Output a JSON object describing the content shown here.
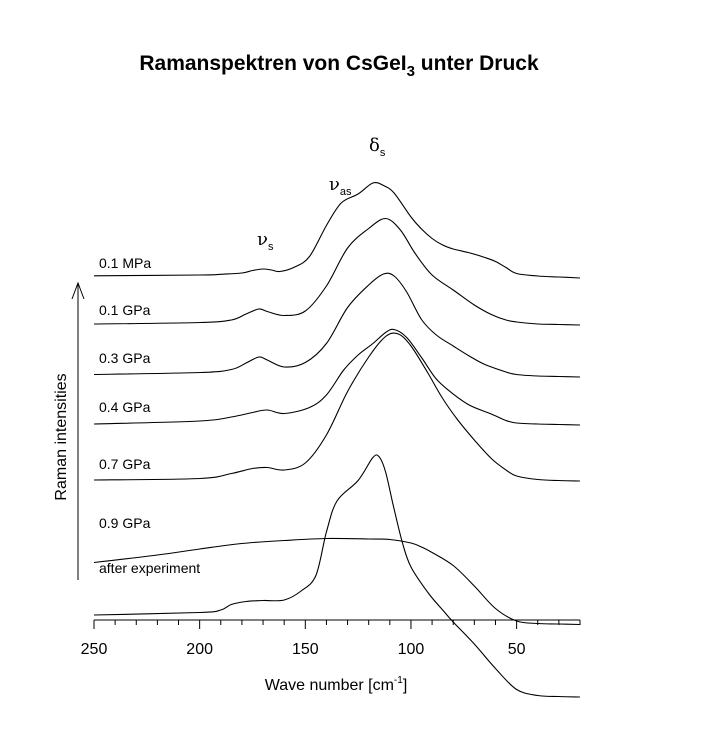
{
  "chart_data": {
    "type": "line",
    "title": {
      "main": "Ramanspektren von CsGeI",
      "sub": "3",
      "tail": " unter Druck"
    },
    "xlabel": {
      "main": "Wave number [cm",
      "sup": "-1",
      "tail": "]"
    },
    "ylabel": "Raman intensities",
    "xlim": [
      250,
      20
    ],
    "x_ticks": [
      250,
      200,
      150,
      100,
      50
    ],
    "annotations": [
      {
        "symbol": "ν",
        "sub": "s",
        "x": 170
      },
      {
        "symbol": "ν",
        "sub": "as",
        "x": 136
      },
      {
        "symbol": "δ",
        "sub": "s",
        "x": 117
      }
    ],
    "series": [
      {
        "name": "0.1 MPa",
        "x": [
          250,
          200,
          190,
          180,
          175,
          170,
          166,
          162,
          155,
          148,
          140,
          133,
          125,
          118,
          113,
          108,
          100,
          95,
          90,
          85,
          80,
          72,
          65,
          60,
          55,
          50,
          40,
          30,
          20
        ],
        "y": [
          0.45,
          0.6,
          0.75,
          1.0,
          1.5,
          1.8,
          1.6,
          1.3,
          2.2,
          4.3,
          10.5,
          15.0,
          16.8,
          19.0,
          18.5,
          17.0,
          12.2,
          9.8,
          7.9,
          6.6,
          5.8,
          5.0,
          4.1,
          3.3,
          2.1,
          0.9,
          0.4,
          0.2,
          0
        ]
      },
      {
        "name": "0.1 GPa",
        "x": [
          250,
          200,
          185,
          178,
          172,
          168,
          160,
          150,
          140,
          130,
          120,
          112,
          105,
          98,
          90,
          80,
          70,
          62,
          55,
          50,
          40,
          30,
          20
        ],
        "y": [
          0.2,
          0.5,
          1.0,
          2.2,
          3.2,
          2.7,
          1.9,
          2.8,
          7.8,
          15.4,
          19.3,
          21.3,
          19.0,
          14.3,
          10.0,
          7.0,
          4.0,
          2.1,
          1.0,
          0.6,
          0.2,
          0.1,
          0
        ]
      },
      {
        "name": "0.3 GPa",
        "x": [
          250,
          200,
          185,
          178,
          172,
          168,
          160,
          150,
          140,
          130,
          120,
          113,
          108,
          102,
          95,
          88,
          80,
          72,
          65,
          55,
          50,
          40,
          30,
          20
        ],
        "y": [
          0.5,
          0.9,
          1.5,
          2.8,
          4.0,
          3.4,
          2.0,
          2.9,
          6.7,
          13.9,
          18.4,
          20.6,
          20.2,
          17.0,
          11.5,
          8.4,
          6.2,
          4.1,
          2.5,
          1.0,
          0.5,
          0.2,
          0.1,
          0
        ]
      },
      {
        "name": "0.4 GPa",
        "x": [
          250,
          200,
          185,
          175,
          168,
          160,
          148,
          140,
          132,
          125,
          118,
          112,
          108,
          102,
          95,
          88,
          80,
          72,
          62,
          55,
          50,
          40,
          30,
          20
        ],
        "y": [
          0.2,
          0.8,
          1.6,
          2.5,
          3.0,
          2.3,
          3.5,
          6.0,
          10.9,
          14.0,
          16.3,
          18.5,
          19.1,
          17.5,
          13.5,
          9.2,
          6.2,
          3.9,
          2.2,
          0.9,
          0.4,
          0.2,
          0.1,
          0
        ]
      },
      {
        "name": "0.7 GPa",
        "x": [
          250,
          200,
          185,
          175,
          168,
          160,
          150,
          140,
          130,
          120,
          112,
          106,
          100,
          92,
          85,
          78,
          70,
          62,
          55,
          50,
          40,
          30,
          20
        ],
        "y": [
          0.2,
          0.5,
          1.5,
          2.5,
          2.7,
          2.2,
          3.6,
          9.2,
          17.9,
          24.8,
          28.9,
          29.4,
          27.0,
          21.6,
          16.5,
          12.3,
          8.2,
          4.5,
          2.2,
          1.0,
          0.3,
          0.1,
          0
        ]
      },
      {
        "name": "0.9 GPa",
        "x": [
          250,
          220,
          200,
          180,
          160,
          140,
          120,
          110,
          100,
          95,
          90,
          80,
          70,
          60,
          50,
          40,
          30,
          20
        ],
        "y": [
          1.9,
          3.4,
          4.6,
          5.7,
          6.3,
          6.7,
          6.6,
          6.5,
          5.8,
          5.0,
          3.9,
          1.3,
          -2.8,
          -7.3,
          -9.8,
          -10.3,
          -10.4,
          -10.5
        ]
      },
      {
        "name": "after experiment",
        "x": [
          250,
          200,
          190,
          185,
          178,
          170,
          160,
          152,
          145,
          140,
          135,
          125,
          118,
          115,
          112,
          108,
          104,
          100,
          92,
          85,
          80,
          70,
          60,
          50,
          40,
          30,
          20
        ],
        "y": [
          0.4,
          0.9,
          1.4,
          2.5,
          3.1,
          3.3,
          3.4,
          5.2,
          8.3,
          17.0,
          23.2,
          27.3,
          31.9,
          32.0,
          29.0,
          21.6,
          14.8,
          10.0,
          4.9,
          1.4,
          -1.0,
          -5.4,
          -10.3,
          -14.5,
          -15.7,
          -15.9,
          -16.0
        ]
      }
    ]
  }
}
